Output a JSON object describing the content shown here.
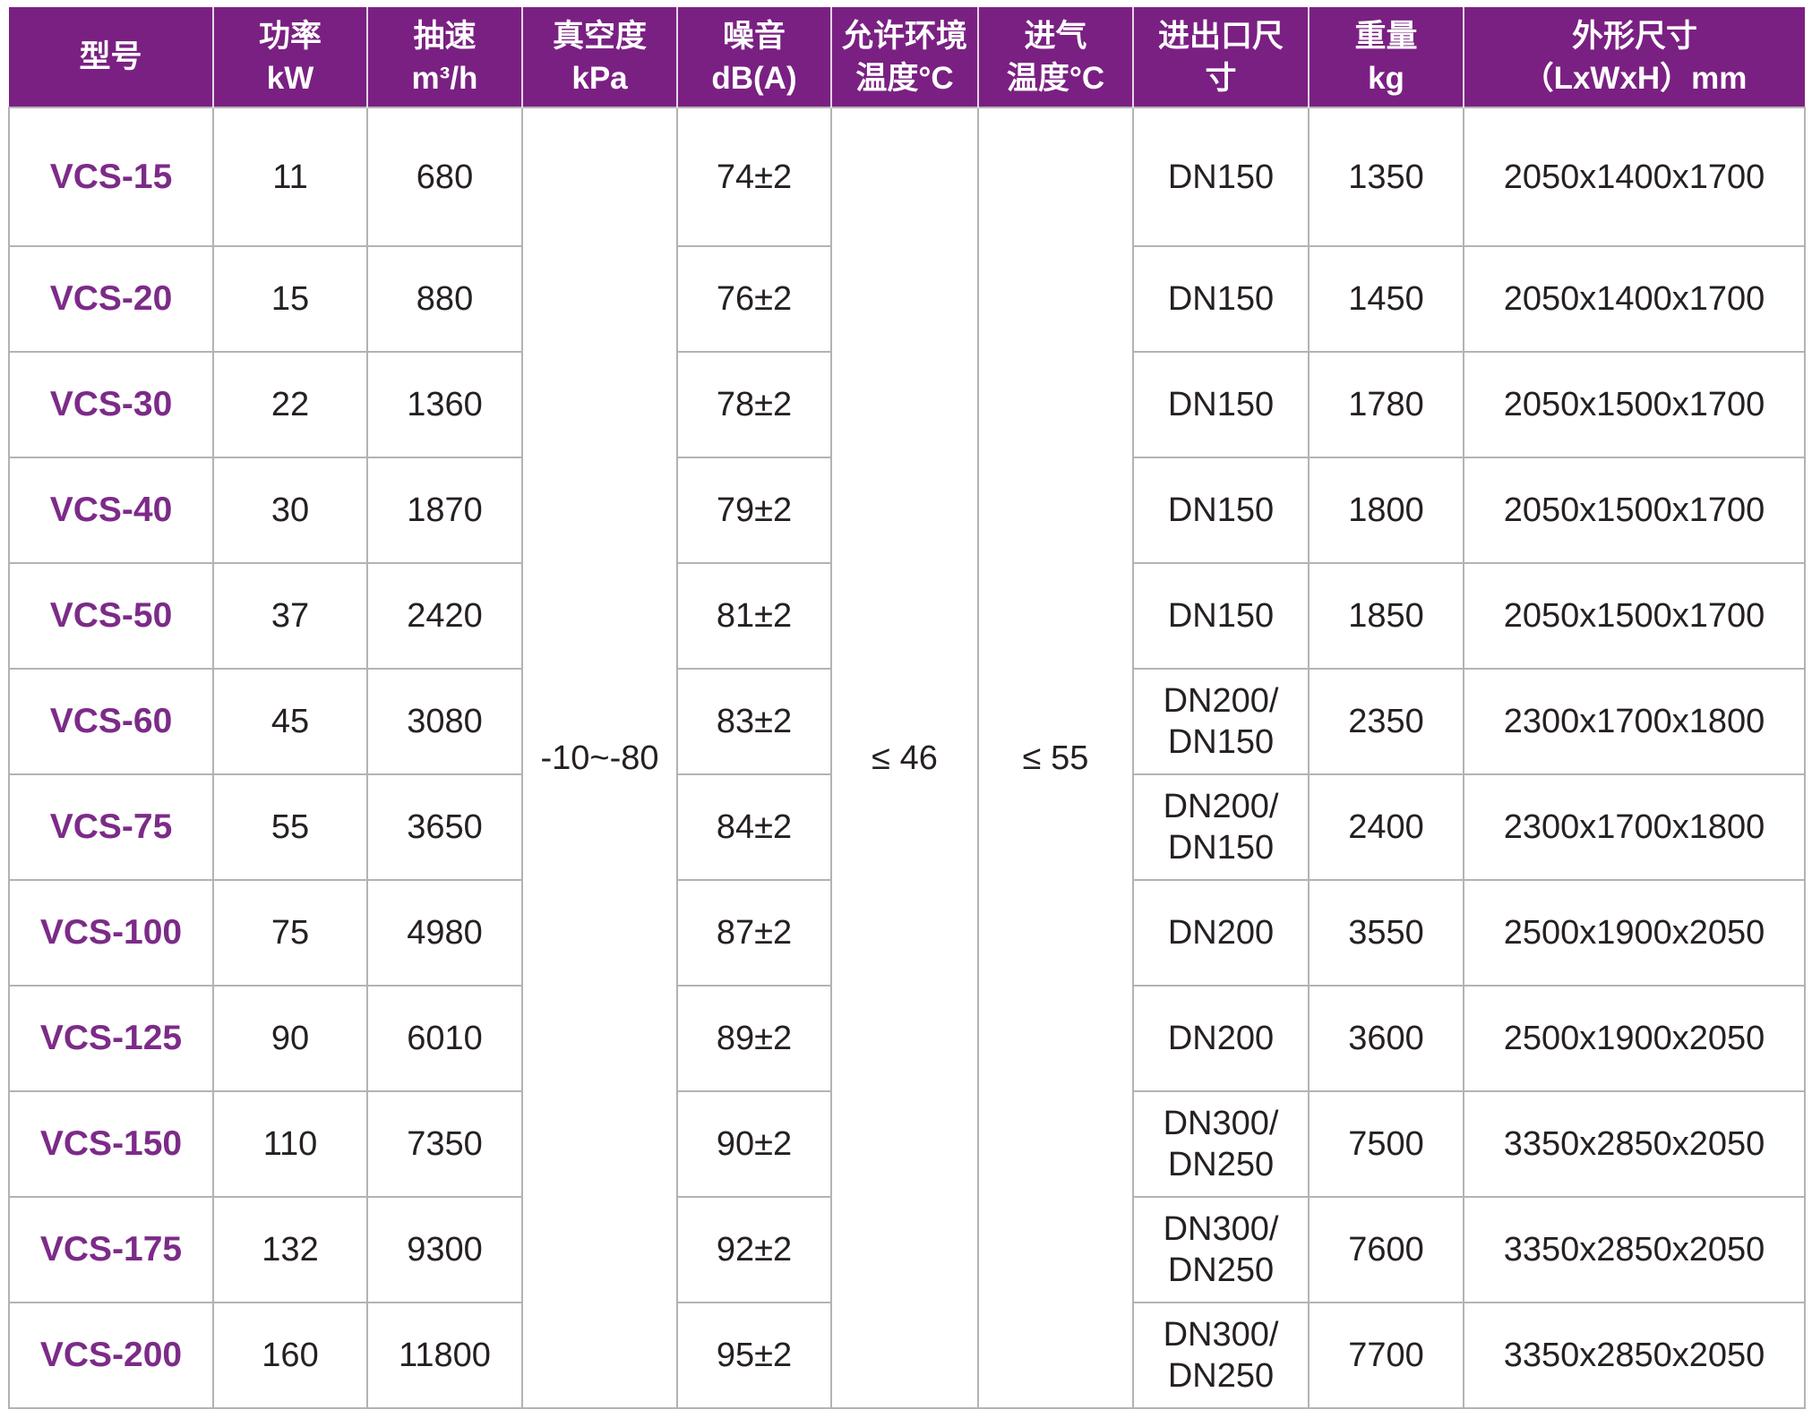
{
  "colors": {
    "header_bg": "#7a2082",
    "header_text": "#ffffff",
    "model_text": "#7c2b88",
    "body_text": "#262020",
    "grid_line": "#b3b3b3",
    "header_divider": "#e3d6e6"
  },
  "table": {
    "columns": [
      {
        "id": "model",
        "label": "型号"
      },
      {
        "id": "power",
        "label": "功率\nkW"
      },
      {
        "id": "speed",
        "label": "抽速\nm³/h"
      },
      {
        "id": "vacuum",
        "label": "真空度\nkPa"
      },
      {
        "id": "noise",
        "label": "噪音\ndB(A)"
      },
      {
        "id": "ambient",
        "label": "允许环境\n温度°C"
      },
      {
        "id": "intake",
        "label": "进气\n温度°C"
      },
      {
        "id": "ports",
        "label": "进出口尺\n寸"
      },
      {
        "id": "weight",
        "label": "重量\nkg"
      },
      {
        "id": "dims",
        "label": "外形尺寸\n（LxWxH）mm"
      }
    ],
    "merged": {
      "vacuum_kpa": "-10~-80",
      "ambient_temp_c": "≤ 46",
      "intake_temp_c": "≤ 55"
    },
    "rows": [
      {
        "model": "VCS-15",
        "power_kw": "11",
        "speed_m3h": "680",
        "noise_db": "74±2",
        "ports": "DN150",
        "weight_kg": "1350",
        "dims_mm": "2050x1400x1700"
      },
      {
        "model": "VCS-20",
        "power_kw": "15",
        "speed_m3h": "880",
        "noise_db": "76±2",
        "ports": "DN150",
        "weight_kg": "1450",
        "dims_mm": "2050x1400x1700"
      },
      {
        "model": "VCS-30",
        "power_kw": "22",
        "speed_m3h": "1360",
        "noise_db": "78±2",
        "ports": "DN150",
        "weight_kg": "1780",
        "dims_mm": "2050x1500x1700"
      },
      {
        "model": "VCS-40",
        "power_kw": "30",
        "speed_m3h": "1870",
        "noise_db": "79±2",
        "ports": "DN150",
        "weight_kg": "1800",
        "dims_mm": "2050x1500x1700"
      },
      {
        "model": "VCS-50",
        "power_kw": "37",
        "speed_m3h": "2420",
        "noise_db": "81±2",
        "ports": "DN150",
        "weight_kg": "1850",
        "dims_mm": "2050x1500x1700"
      },
      {
        "model": "VCS-60",
        "power_kw": "45",
        "speed_m3h": "3080",
        "noise_db": "83±2",
        "ports": "DN200/\nDN150",
        "weight_kg": "2350",
        "dims_mm": "2300x1700x1800"
      },
      {
        "model": "VCS-75",
        "power_kw": "55",
        "speed_m3h": "3650",
        "noise_db": "84±2",
        "ports": "DN200/\nDN150",
        "weight_kg": "2400",
        "dims_mm": "2300x1700x1800"
      },
      {
        "model": "VCS-100",
        "power_kw": "75",
        "speed_m3h": "4980",
        "noise_db": "87±2",
        "ports": "DN200",
        "weight_kg": "3550",
        "dims_mm": "2500x1900x2050"
      },
      {
        "model": "VCS-125",
        "power_kw": "90",
        "speed_m3h": "6010",
        "noise_db": "89±2",
        "ports": "DN200",
        "weight_kg": "3600",
        "dims_mm": "2500x1900x2050"
      },
      {
        "model": "VCS-150",
        "power_kw": "110",
        "speed_m3h": "7350",
        "noise_db": "90±2",
        "ports": "DN300/\nDN250",
        "weight_kg": "7500",
        "dims_mm": "3350x2850x2050"
      },
      {
        "model": "VCS-175",
        "power_kw": "132",
        "speed_m3h": "9300",
        "noise_db": "92±2",
        "ports": "DN300/\nDN250",
        "weight_kg": "7600",
        "dims_mm": "3350x2850x2050"
      },
      {
        "model": "VCS-200",
        "power_kw": "160",
        "speed_m3h": "11800",
        "noise_db": "95±2",
        "ports": "DN300/\nDN250",
        "weight_kg": "7700",
        "dims_mm": "3350x2850x2050"
      }
    ]
  }
}
